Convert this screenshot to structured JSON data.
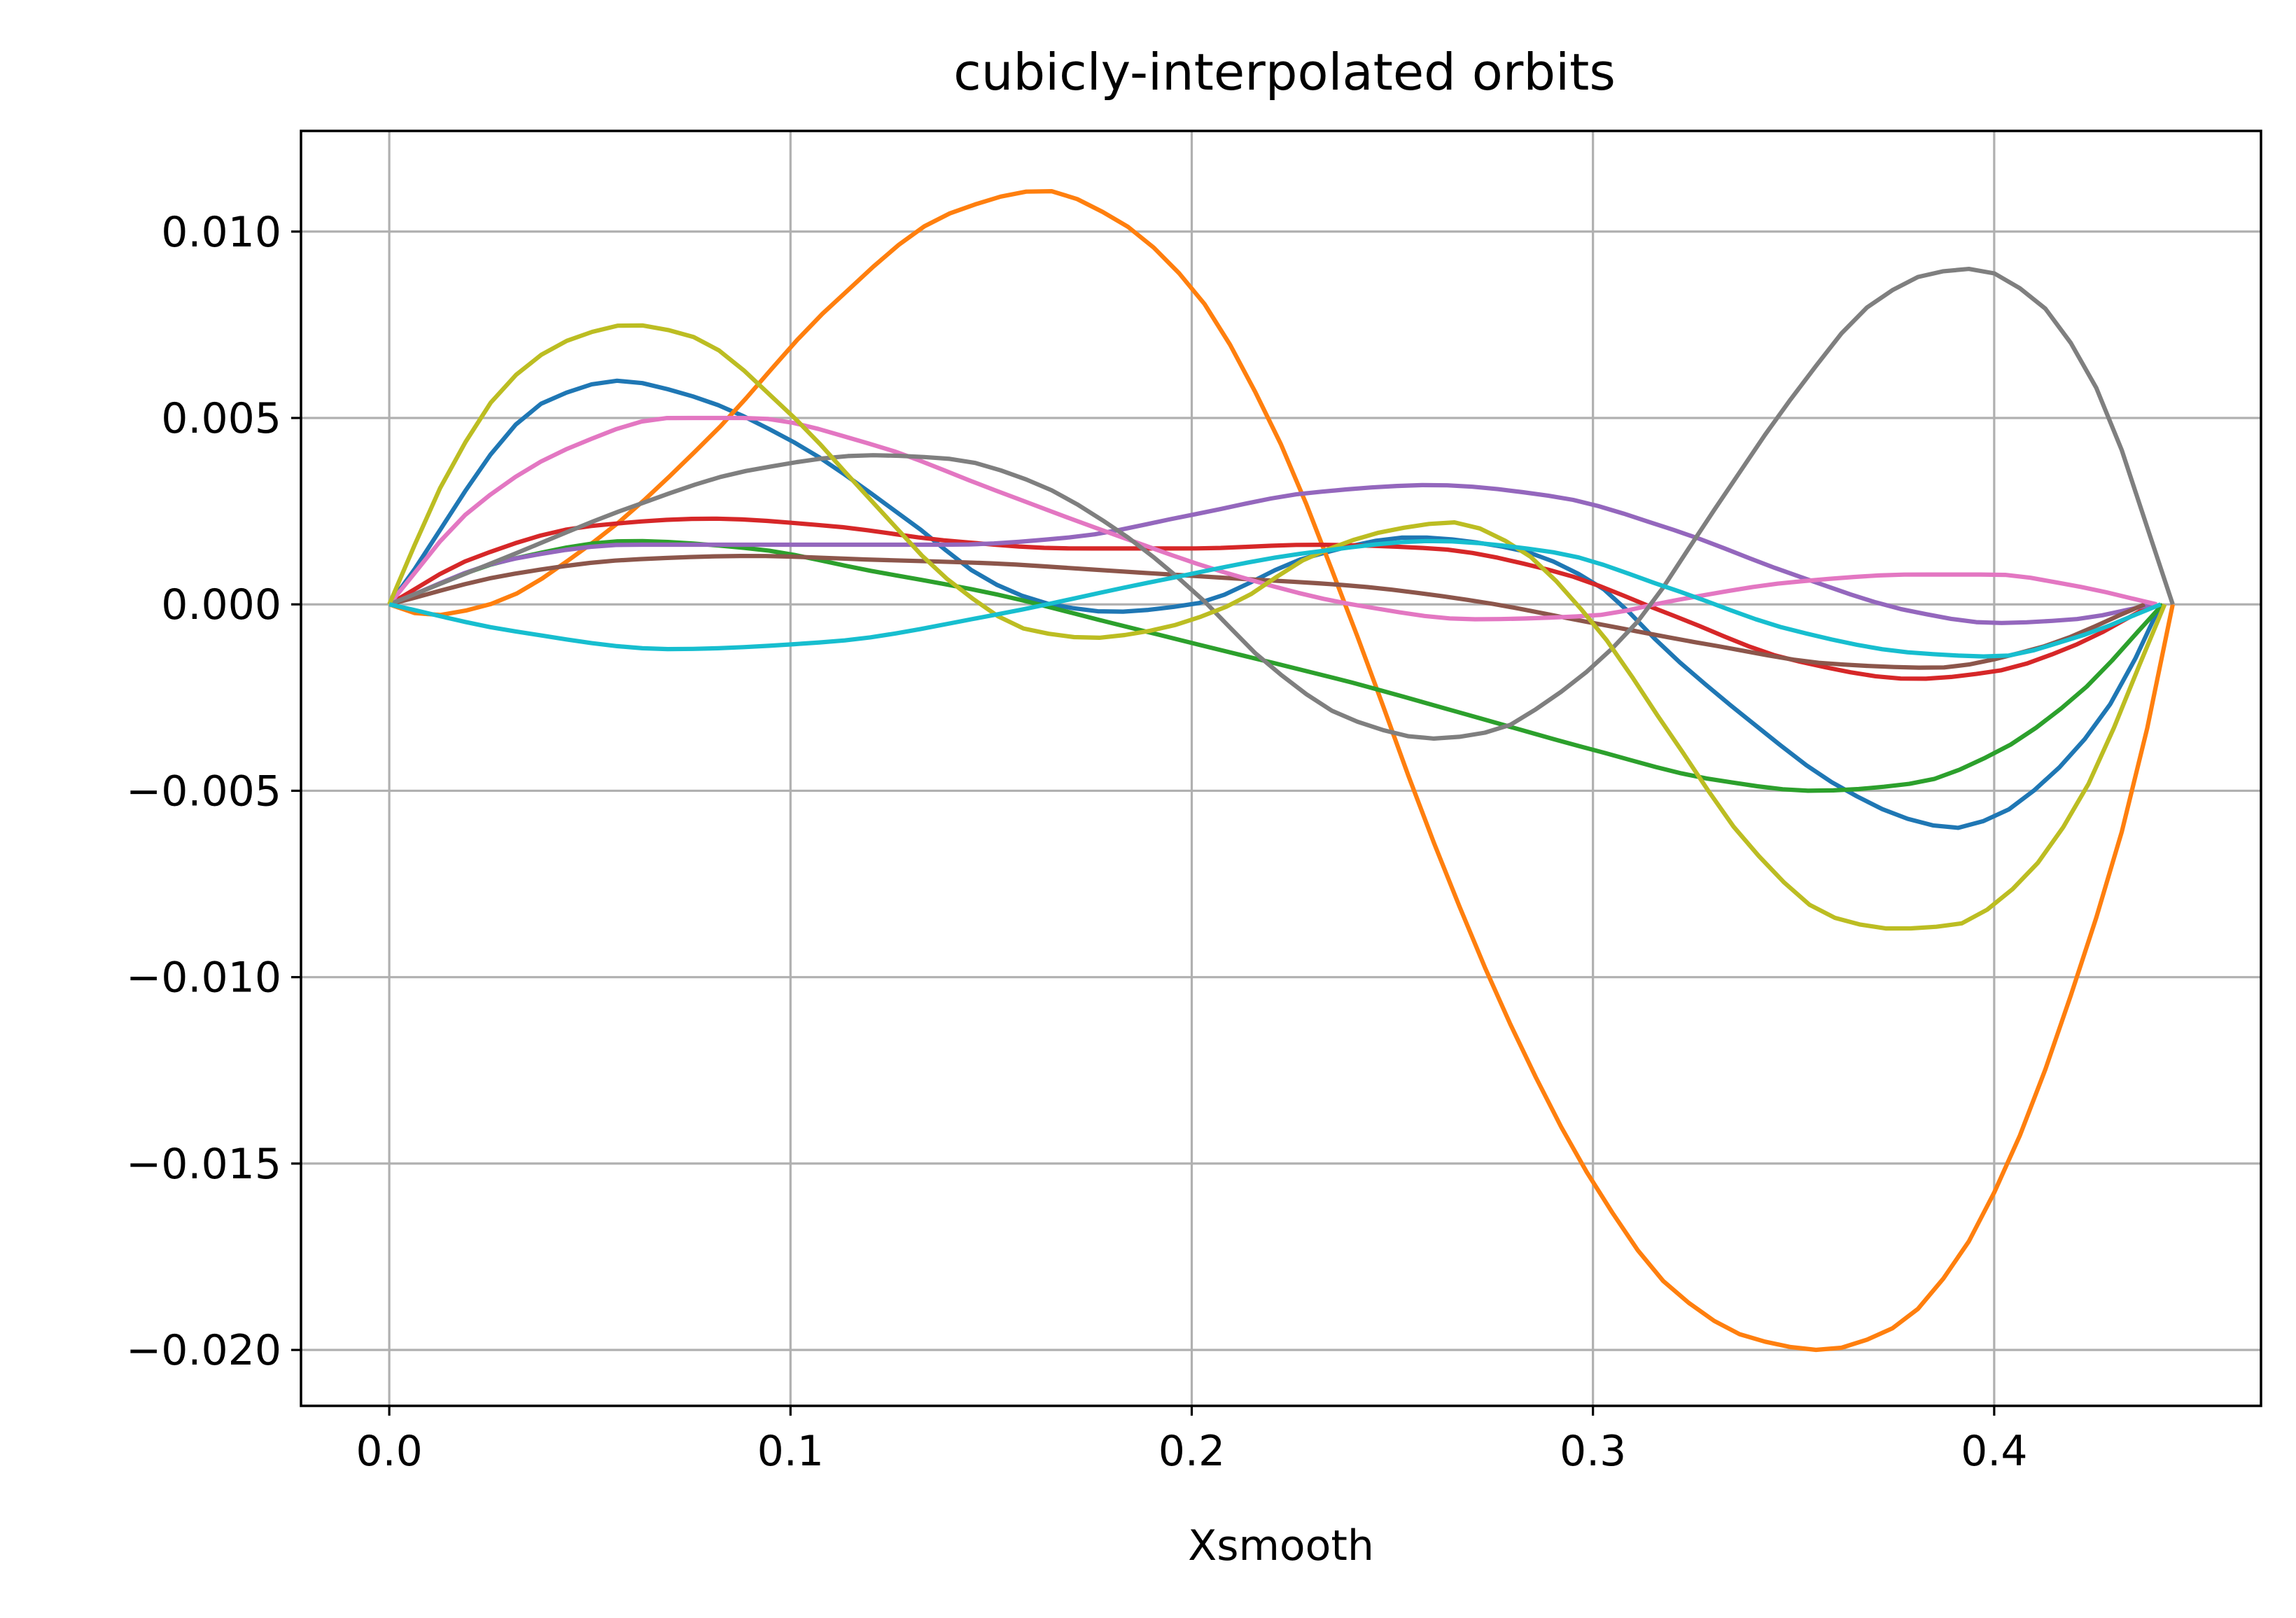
{
  "chart_data": {
    "type": "line",
    "title": "cubicly-interpolated orbits",
    "xlabel": "Xsmooth",
    "ylabel": "",
    "xlim": [
      -0.022,
      0.4665
    ],
    "ylim": [
      -0.0215,
      0.0127
    ],
    "x_ticks": [
      0.0,
      0.1,
      0.2,
      0.3,
      0.4
    ],
    "x_tick_labels": [
      "0.0",
      "0.1",
      "0.2",
      "0.3",
      "0.4"
    ],
    "y_ticks": [
      0.01,
      0.005,
      0.0,
      -0.005,
      -0.01,
      -0.015,
      -0.02
    ],
    "y_tick_labels": [
      "0.010",
      "0.005",
      "0.000",
      "−0.005",
      "−0.010",
      "−0.015",
      "−0.020"
    ],
    "grid": true,
    "legend": "none",
    "series": [
      {
        "color": "#1f77b4",
        "x_end": 0.4415,
        "points": [
          [
            0.0,
            0.0
          ],
          [
            0.04,
            0.0055
          ],
          [
            0.057,
            0.006
          ],
          [
            0.075,
            0.0056
          ],
          [
            0.1,
            0.0044
          ],
          [
            0.13,
            0.0022
          ],
          [
            0.15,
            0.0006
          ],
          [
            0.165,
            0.0
          ],
          [
            0.18,
            -0.0002
          ],
          [
            0.2,
            0.0
          ],
          [
            0.23,
            0.0013
          ],
          [
            0.255,
            0.0018
          ],
          [
            0.28,
            0.0015
          ],
          [
            0.3,
            0.0006
          ],
          [
            0.32,
            -0.0014
          ],
          [
            0.34,
            -0.0032
          ],
          [
            0.36,
            -0.0048
          ],
          [
            0.38,
            -0.0058
          ],
          [
            0.39,
            -0.006
          ],
          [
            0.4,
            -0.0057
          ],
          [
            0.415,
            -0.0045
          ],
          [
            0.43,
            -0.0025
          ],
          [
            0.4415,
            0.0
          ]
        ]
      },
      {
        "color": "#ff7f0e",
        "x_end": 0.4445,
        "points": [
          [
            0.0,
            0.0
          ],
          [
            0.01,
            -0.0003
          ],
          [
            0.025,
            0.0
          ],
          [
            0.05,
            0.0016
          ],
          [
            0.08,
            0.0045
          ],
          [
            0.11,
            0.008
          ],
          [
            0.14,
            0.0105
          ],
          [
            0.163,
            0.0111
          ],
          [
            0.18,
            0.0104
          ],
          [
            0.2,
            0.0085
          ],
          [
            0.22,
            0.0048
          ],
          [
            0.24,
            -0.0005
          ],
          [
            0.26,
            -0.0063
          ],
          [
            0.28,
            -0.0114
          ],
          [
            0.3,
            -0.0155
          ],
          [
            0.32,
            -0.0184
          ],
          [
            0.34,
            -0.0197
          ],
          [
            0.357,
            -0.02
          ],
          [
            0.375,
            -0.0194
          ],
          [
            0.39,
            -0.0177
          ],
          [
            0.405,
            -0.0146
          ],
          [
            0.42,
            -0.0102
          ],
          [
            0.435,
            -0.0048
          ],
          [
            0.4445,
            0.0
          ]
        ]
      },
      {
        "color": "#2ca02c",
        "x_end": 0.442,
        "points": [
          [
            0.0,
            0.0
          ],
          [
            0.03,
            0.0012
          ],
          [
            0.06,
            0.0017
          ],
          [
            0.09,
            0.0015
          ],
          [
            0.12,
            0.0009
          ],
          [
            0.15,
            0.0003
          ],
          [
            0.18,
            -0.0005
          ],
          [
            0.21,
            -0.0013
          ],
          [
            0.24,
            -0.0021
          ],
          [
            0.27,
            -0.003
          ],
          [
            0.3,
            -0.0039
          ],
          [
            0.33,
            -0.0047
          ],
          [
            0.355,
            -0.005
          ],
          [
            0.38,
            -0.0048
          ],
          [
            0.4,
            -0.004
          ],
          [
            0.42,
            -0.0025
          ],
          [
            0.442,
            0.0
          ]
        ]
      },
      {
        "color": "#d62728",
        "x_end": 0.4395,
        "points": [
          [
            0.0,
            0.0
          ],
          [
            0.02,
            0.0012
          ],
          [
            0.05,
            0.0021
          ],
          [
            0.08,
            0.0023
          ],
          [
            0.11,
            0.0021
          ],
          [
            0.14,
            0.0017
          ],
          [
            0.17,
            0.0015
          ],
          [
            0.2,
            0.0015
          ],
          [
            0.23,
            0.0016
          ],
          [
            0.26,
            0.0015
          ],
          [
            0.29,
            0.0009
          ],
          [
            0.32,
            -0.0003
          ],
          [
            0.35,
            -0.0015
          ],
          [
            0.38,
            -0.002
          ],
          [
            0.4,
            -0.0018
          ],
          [
            0.42,
            -0.0011
          ],
          [
            0.4395,
            0.0
          ]
        ]
      },
      {
        "color": "#9467bd",
        "x_end": 0.4395,
        "points": [
          [
            0.0,
            0.0
          ],
          [
            0.03,
            0.0012
          ],
          [
            0.06,
            0.0016
          ],
          [
            0.1,
            0.0016
          ],
          [
            0.14,
            0.0016
          ],
          [
            0.17,
            0.0018
          ],
          [
            0.2,
            0.0024
          ],
          [
            0.23,
            0.003
          ],
          [
            0.26,
            0.0032
          ],
          [
            0.29,
            0.0029
          ],
          [
            0.32,
            0.002
          ],
          [
            0.35,
            0.0008
          ],
          [
            0.38,
            -0.0002
          ],
          [
            0.4,
            -0.0005
          ],
          [
            0.42,
            -0.0004
          ],
          [
            0.4395,
            0.0
          ]
        ]
      },
      {
        "color": "#8c564b",
        "x_end": 0.4375,
        "points": [
          [
            0.0,
            0.0
          ],
          [
            0.03,
            0.0008
          ],
          [
            0.06,
            0.0012
          ],
          [
            0.09,
            0.0013
          ],
          [
            0.12,
            0.0012
          ],
          [
            0.15,
            0.0011
          ],
          [
            0.18,
            0.0009
          ],
          [
            0.21,
            0.0007
          ],
          [
            0.24,
            0.0005
          ],
          [
            0.27,
            0.0001
          ],
          [
            0.3,
            -0.0005
          ],
          [
            0.33,
            -0.0011
          ],
          [
            0.36,
            -0.0016
          ],
          [
            0.385,
            -0.0017
          ],
          [
            0.41,
            -0.0012
          ],
          [
            0.4375,
            0.0
          ]
        ]
      },
      {
        "color": "#e377c2",
        "x_end": 0.4405,
        "points": [
          [
            0.0,
            0.0
          ],
          [
            0.02,
            0.0025
          ],
          [
            0.045,
            0.0042
          ],
          [
            0.07,
            0.005
          ],
          [
            0.09,
            0.005
          ],
          [
            0.12,
            0.0043
          ],
          [
            0.15,
            0.0031
          ],
          [
            0.18,
            0.0019
          ],
          [
            0.21,
            0.0008
          ],
          [
            0.24,
            0.0
          ],
          [
            0.27,
            -0.0004
          ],
          [
            0.3,
            -0.0003
          ],
          [
            0.32,
            0.0001
          ],
          [
            0.35,
            0.0006
          ],
          [
            0.38,
            0.0008
          ],
          [
            0.4,
            0.0008
          ],
          [
            0.42,
            0.0005
          ],
          [
            0.4405,
            0.0
          ]
        ]
      },
      {
        "color": "#7f7f7f",
        "x_end": 0.4445,
        "points": [
          [
            0.0,
            0.0
          ],
          [
            0.03,
            0.0013
          ],
          [
            0.06,
            0.0026
          ],
          [
            0.09,
            0.0036
          ],
          [
            0.12,
            0.004
          ],
          [
            0.14,
            0.0039
          ],
          [
            0.16,
            0.0033
          ],
          [
            0.18,
            0.0021
          ],
          [
            0.2,
            0.0004
          ],
          [
            0.22,
            -0.0017
          ],
          [
            0.24,
            -0.0031
          ],
          [
            0.26,
            -0.0036
          ],
          [
            0.275,
            -0.0034
          ],
          [
            0.29,
            -0.0025
          ],
          [
            0.31,
            -0.0006
          ],
          [
            0.33,
            0.0025
          ],
          [
            0.35,
            0.0056
          ],
          [
            0.37,
            0.0081
          ],
          [
            0.385,
            0.0089
          ],
          [
            0.395,
            0.009
          ],
          [
            0.41,
            0.0082
          ],
          [
            0.425,
            0.0059
          ],
          [
            0.4445,
            0.0
          ]
        ]
      },
      {
        "color": "#bcbd22",
        "x_end": 0.4425,
        "points": [
          [
            0.0,
            0.0
          ],
          [
            0.015,
            0.0036
          ],
          [
            0.03,
            0.006
          ],
          [
            0.045,
            0.0071
          ],
          [
            0.06,
            0.0075
          ],
          [
            0.075,
            0.0072
          ],
          [
            0.1,
            0.0051
          ],
          [
            0.12,
            0.0028
          ],
          [
            0.14,
            0.0006
          ],
          [
            0.16,
            -0.0007
          ],
          [
            0.175,
            -0.0009
          ],
          [
            0.19,
            -0.0007
          ],
          [
            0.21,
            0.0
          ],
          [
            0.23,
            0.0013
          ],
          [
            0.25,
            0.002
          ],
          [
            0.265,
            0.0022
          ],
          [
            0.28,
            0.0016
          ],
          [
            0.3,
            -0.0005
          ],
          [
            0.32,
            -0.0036
          ],
          [
            0.34,
            -0.0066
          ],
          [
            0.36,
            -0.0084
          ],
          [
            0.375,
            -0.0087
          ],
          [
            0.39,
            -0.0086
          ],
          [
            0.405,
            -0.0076
          ],
          [
            0.42,
            -0.0055
          ],
          [
            0.4425,
            0.0
          ]
        ]
      },
      {
        "color": "#17becf",
        "x_end": 0.4415,
        "points": [
          [
            0.0,
            0.0
          ],
          [
            0.03,
            -0.0007
          ],
          [
            0.07,
            -0.0012
          ],
          [
            0.11,
            -0.001
          ],
          [
            0.15,
            -0.0003
          ],
          [
            0.19,
            0.0006
          ],
          [
            0.23,
            0.0014
          ],
          [
            0.26,
            0.0017
          ],
          [
            0.29,
            0.0014
          ],
          [
            0.32,
            0.0004
          ],
          [
            0.35,
            -0.0007
          ],
          [
            0.38,
            -0.0013
          ],
          [
            0.4,
            -0.0014
          ],
          [
            0.42,
            -0.0009
          ],
          [
            0.4415,
            0.0
          ]
        ]
      }
    ]
  }
}
